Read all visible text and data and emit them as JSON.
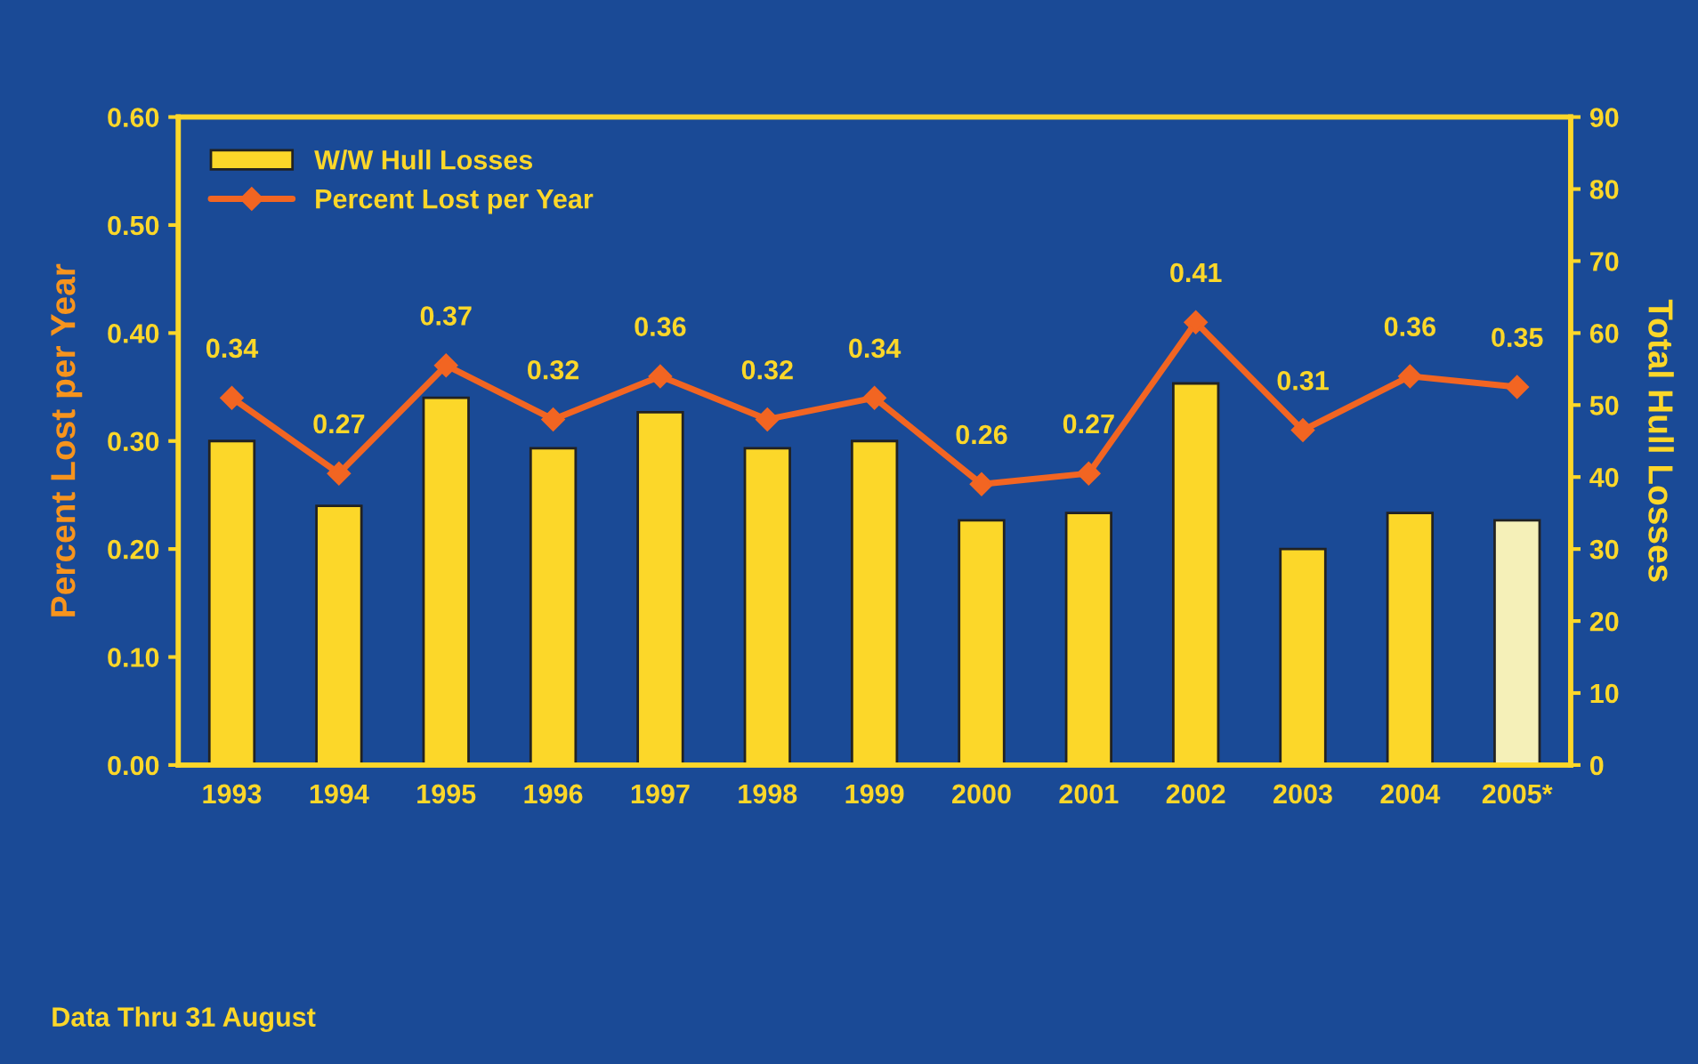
{
  "chart_data": {
    "type": "bar",
    "categories": [
      "1993",
      "1994",
      "1995",
      "1996",
      "1997",
      "1998",
      "1999",
      "2000",
      "2001",
      "2002",
      "2003",
      "2004",
      "2005*"
    ],
    "series": [
      {
        "name": "W/W Hull Losses",
        "axis": "y2",
        "color": "#fcd729",
        "colors": [
          "#fcd729",
          "#fcd729",
          "#fcd729",
          "#fcd729",
          "#fcd729",
          "#fcd729",
          "#fcd729",
          "#fcd729",
          "#fcd729",
          "#fcd729",
          "#fcd729",
          "#fcd729",
          "#f5f0b8"
        ],
        "values": [
          45,
          36,
          51,
          44,
          49,
          44,
          45,
          34,
          35,
          53,
          30,
          35,
          34
        ]
      },
      {
        "name": "Percent Lost per Year",
        "type": "line",
        "color": "#f26522",
        "marker": "diamond",
        "data_labels": true,
        "values": [
          0.34,
          0.27,
          0.37,
          0.32,
          0.36,
          0.32,
          0.34,
          0.26,
          0.27,
          0.41,
          0.31,
          0.36,
          0.35
        ]
      }
    ],
    "ylabel": "Percent Lost per Year",
    "y2label": "Total Hull Losses",
    "ylim": [
      0,
      0.6
    ],
    "yticks": [
      {
        "value": 0,
        "label": "0.00"
      },
      {
        "value": 0.1,
        "label": "0.10"
      },
      {
        "value": 0.2,
        "label": "0.20"
      },
      {
        "value": 0.3,
        "label": "0.30"
      },
      {
        "value": 0.4,
        "label": "0.40"
      },
      {
        "value": 0.5,
        "label": "0.50"
      },
      {
        "value": 0.6,
        "label": "0.60"
      }
    ],
    "y2lim": [
      0,
      90
    ],
    "y2ticks": [
      0,
      10,
      20,
      30,
      40,
      50,
      60,
      70,
      80,
      90
    ],
    "legend": "top left",
    "grid": false,
    "annotations": [
      "Data Thru 31 August"
    ]
  }
}
